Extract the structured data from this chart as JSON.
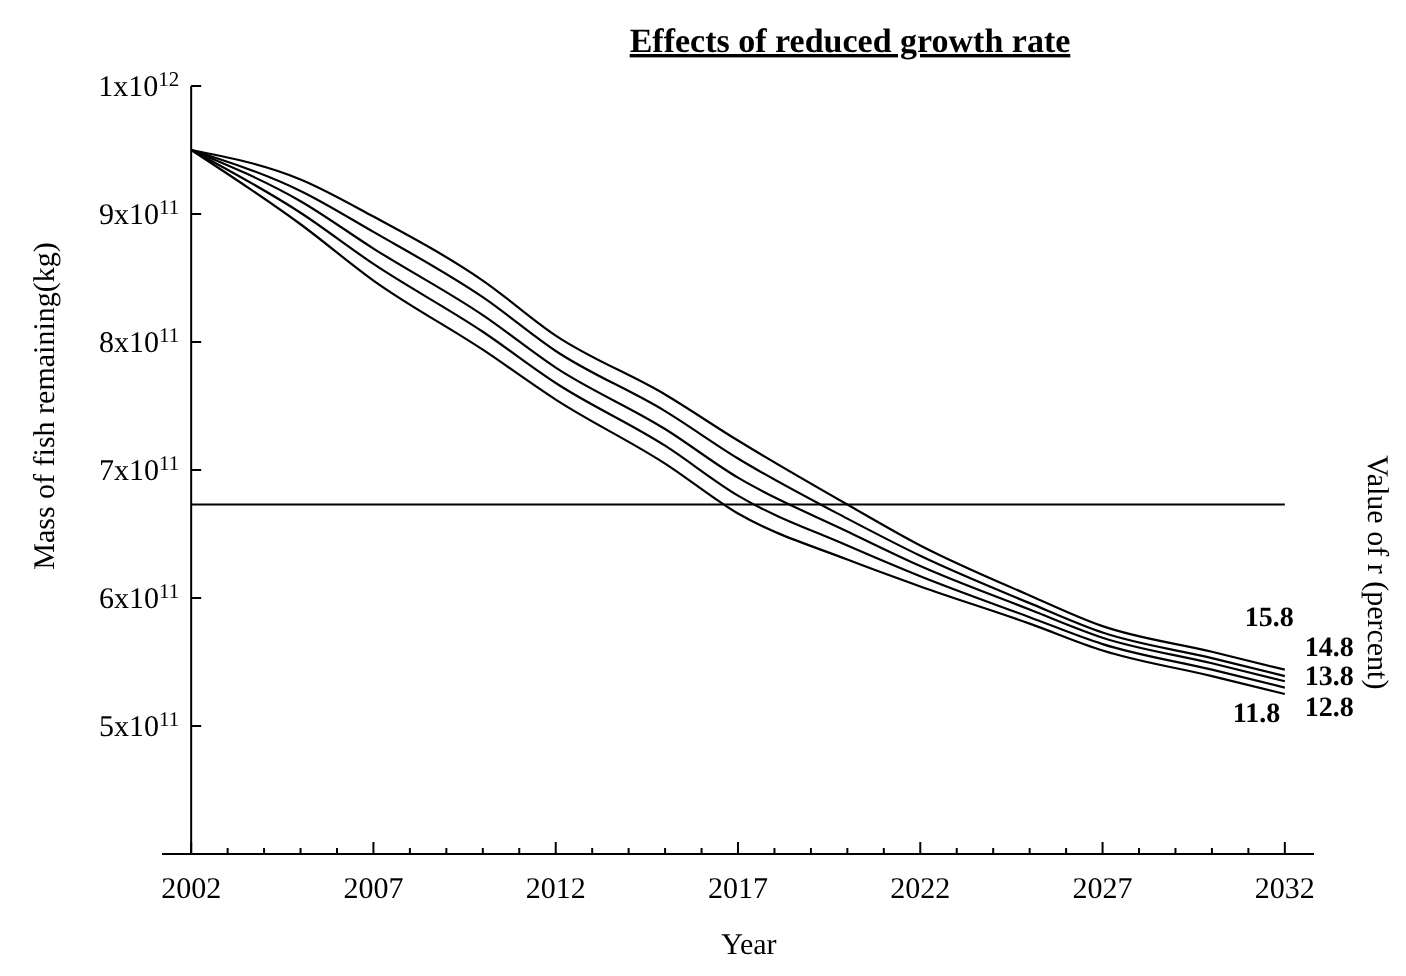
{
  "chart_data": {
    "type": "line",
    "title": "Effects of reduced growth rate",
    "xlabel": "Year",
    "ylabel": "Mass of fish remaining(kg)",
    "y2label": "Value of r (percent)",
    "x": [
      2002,
      2005,
      2007,
      2010,
      2012,
      2015,
      2017,
      2020,
      2022,
      2025,
      2027,
      2030,
      2032
    ],
    "series": [
      {
        "name": "11.8",
        "color": "#000000",
        "values": [
          950000000000,
          892000000000,
          848000000000,
          794000000000,
          755000000000,
          705000000000,
          666000000000,
          630000000000,
          609000000000,
          580000000000,
          559000000000,
          539000000000,
          525000000000
        ]
      },
      {
        "name": "12.8",
        "color": "#000000",
        "values": [
          950000000000,
          901000000000,
          861000000000,
          808000000000,
          768000000000,
          719000000000,
          680000000000,
          641000000000,
          617000000000,
          585000000000,
          564000000000,
          544000000000,
          530000000000
        ]
      },
      {
        "name": "13.8",
        "color": "#000000",
        "values": [
          950000000000,
          910000000000,
          873000000000,
          821000000000,
          780000000000,
          732000000000,
          694000000000,
          652000000000,
          625000000000,
          591000000000,
          569000000000,
          549000000000,
          535000000000
        ]
      },
      {
        "name": "14.8",
        "color": "#000000",
        "values": [
          950000000000,
          918000000000,
          886000000000,
          835000000000,
          793000000000,
          746000000000,
          709000000000,
          662000000000,
          633000000000,
          596000000000,
          573000000000,
          553000000000,
          539000000000
        ]
      },
      {
        "name": "15.8",
        "color": "#000000",
        "values": [
          950000000000,
          927000000000,
          898000000000,
          848000000000,
          805000000000,
          759000000000,
          723000000000,
          673000000000,
          641000000000,
          602000000000,
          578000000000,
          558000000000,
          544000000000
        ]
      }
    ],
    "xlim": [
      2001.2,
      2032.8
    ],
    "xticks": [
      2002,
      {
        "value": 2003,
        "label": null
      },
      {
        "value": 2004,
        "label": null
      },
      {
        "value": 2005,
        "label": null
      },
      {
        "value": 2006,
        "label": null
      },
      2007,
      {
        "value": 2008,
        "label": null
      },
      {
        "value": 2009,
        "label": null
      },
      {
        "value": 2010,
        "label": null
      },
      {
        "value": 2011,
        "label": null
      },
      2012,
      {
        "value": 2013,
        "label": null
      },
      {
        "value": 2014,
        "label": null
      },
      {
        "value": 2015,
        "label": null
      },
      {
        "value": 2016,
        "label": null
      },
      2017,
      {
        "value": 2018,
        "label": null
      },
      {
        "value": 2019,
        "label": null
      },
      {
        "value": 2020,
        "label": null
      },
      {
        "value": 2021,
        "label": null
      },
      2022,
      {
        "value": 2023,
        "label": null
      },
      {
        "value": 2024,
        "label": null
      },
      {
        "value": 2025,
        "label": null
      },
      {
        "value": 2026,
        "label": null
      },
      2027,
      {
        "value": 2028,
        "label": null
      },
      {
        "value": 2029,
        "label": null
      },
      {
        "value": 2030,
        "label": null
      },
      {
        "value": 2031,
        "label": null
      },
      2032
    ],
    "ylim": [
      400000000000,
      1000000000000
    ],
    "yticks": [
      {
        "value": 500000000000,
        "label": "5x10$^{11}$"
      },
      {
        "value": 600000000000,
        "label": "6x10$^{11}$"
      },
      {
        "value": 700000000000,
        "label": "7x10$^{11}$"
      },
      {
        "value": 800000000000,
        "label": "8x10$^{11}$"
      },
      {
        "value": 900000000000,
        "label": "9x10$^{11}$"
      },
      {
        "value": 1000000000000,
        "label": "1x10$^{12}$"
      }
    ],
    "ref_lines": [
      {
        "axis": "y",
        "value": 673000000000,
        "color": "#000000"
      }
    ],
    "grid": false,
    "marker": "none",
    "line_style": "solid"
  }
}
